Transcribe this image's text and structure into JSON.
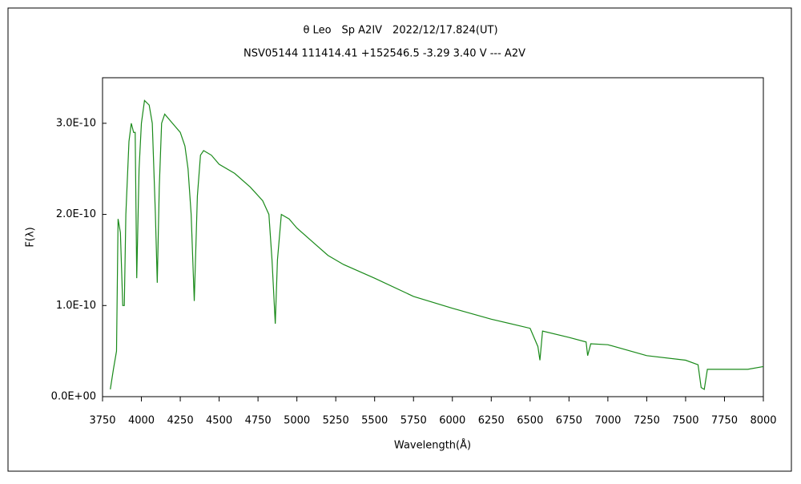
{
  "chart_data": {
    "type": "line",
    "title": "θ Leo　Sp A2IV　2022/12/17.824(UT)",
    "subtitle": "NSV05144 111414.41 +152546.5 -3.29 3.40 V --- A2V",
    "x_label": "Wavelength(Å)",
    "y_label": "F(λ)",
    "x": [
      3800,
      3820,
      3840,
      3850,
      3865,
      3880,
      3890,
      3900,
      3920,
      3935,
      3950,
      3960,
      3970,
      3985,
      4000,
      4020,
      4050,
      4070,
      4090,
      4102,
      4115,
      4130,
      4150,
      4200,
      4250,
      4280,
      4300,
      4320,
      4340,
      4360,
      4380,
      4400,
      4450,
      4500,
      4600,
      4700,
      4780,
      4820,
      4840,
      4861,
      4875,
      4900,
      4950,
      5000,
      5100,
      5200,
      5300,
      5500,
      5750,
      6000,
      6250,
      6500,
      6550,
      6563,
      6580,
      6750,
      6860,
      6870,
      6890,
      7000,
      7250,
      7500,
      7580,
      7600,
      7620,
      7640,
      7750,
      7900,
      8000
    ],
    "series": [
      {
        "name": "F(λ)",
        "color": "#1a8a1a",
        "values": [
          8e-12,
          3e-11,
          5e-11,
          1.95e-10,
          1.8e-10,
          1e-10,
          1e-10,
          2e-10,
          2.8e-10,
          3e-10,
          2.9e-10,
          2.9e-10,
          1.3e-10,
          2.5e-10,
          3e-10,
          3.25e-10,
          3.2e-10,
          3e-10,
          2e-10,
          1.25e-10,
          2.3e-10,
          3e-10,
          3.1e-10,
          3e-10,
          2.9e-10,
          2.75e-10,
          2.5e-10,
          2e-10,
          1.05e-10,
          2.2e-10,
          2.65e-10,
          2.7e-10,
          2.65e-10,
          2.55e-10,
          2.45e-10,
          2.3e-10,
          2.15e-10,
          2e-10,
          1.5e-10,
          8e-11,
          1.5e-10,
          2e-10,
          1.95e-10,
          1.85e-10,
          1.7e-10,
          1.55e-10,
          1.45e-10,
          1.3e-10,
          1.1e-10,
          9.7e-11,
          8.5e-11,
          7.5e-11,
          5.5e-11,
          4e-11,
          7.2e-11,
          6.5e-11,
          6e-11,
          4.5e-11,
          5.8e-11,
          5.7e-11,
          4.5e-11,
          4e-11,
          3.5e-11,
          1e-11,
          8e-12,
          3e-11,
          3e-11,
          3e-11,
          3.3e-11
        ]
      }
    ],
    "xlim": [
      3750,
      8000
    ],
    "xticks": [
      3750,
      4000,
      4250,
      4500,
      4750,
      5000,
      5250,
      5500,
      5750,
      6000,
      6250,
      6500,
      6750,
      7000,
      7250,
      7500,
      7750,
      8000
    ],
    "ylim": [
      0,
      3.5e-10
    ],
    "yticks": [
      {
        "value": 0,
        "label": "0.0E+00"
      },
      {
        "value": 1e-10,
        "label": "1.0E-10"
      },
      {
        "value": 2e-10,
        "label": "2.0E-10"
      },
      {
        "value": 3e-10,
        "label": "3.0E-10"
      }
    ],
    "grid": false
  }
}
